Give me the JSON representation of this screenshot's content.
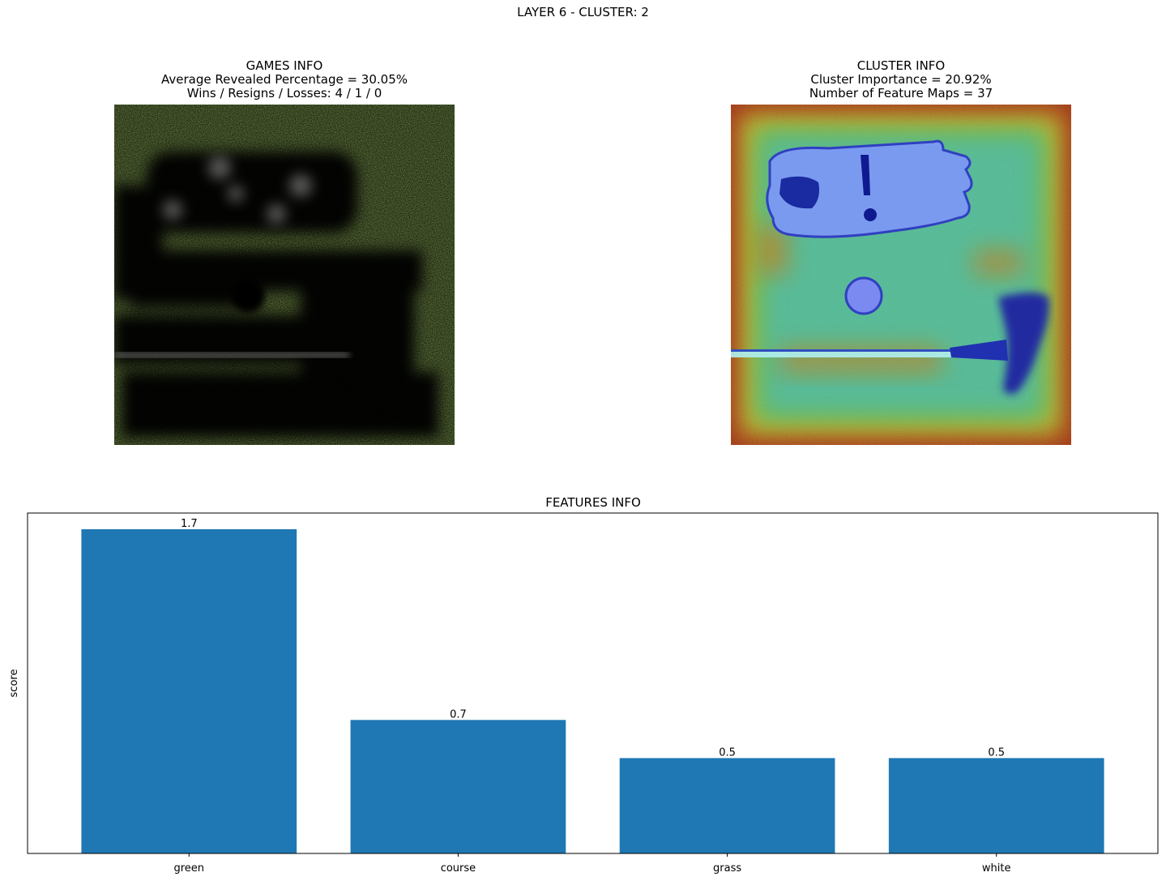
{
  "figure": {
    "suptitle": "LAYER 6 - CLUSTER: 2"
  },
  "games_panel": {
    "title": "GAMES INFO",
    "line1": "Average Revealed Percentage = 30.05%",
    "line2": "Wins / Resigns / Losses: 4 / 1 / 0",
    "image": "masked-golf-glove-ball-putter-on-grass"
  },
  "cluster_panel": {
    "title": "CLUSTER INFO",
    "line1": "Cluster Importance = 20.92%",
    "line2": "Number of Feature Maps = 37",
    "image": "heatmap-golf-glove-ball-putter"
  },
  "chart_data": {
    "type": "bar",
    "title": "FEATURES INFO",
    "ylabel": "score",
    "xlabel": "",
    "categories": [
      "green",
      "course",
      "grass",
      "white"
    ],
    "values": [
      1.7,
      0.7,
      0.5,
      0.5
    ],
    "value_labels": [
      "1.7",
      "0.7",
      "0.5",
      "0.5"
    ],
    "ylim": [
      0,
      1.785
    ],
    "yticks_visible": false,
    "grid": false,
    "bar_color": "#1f77b4"
  }
}
